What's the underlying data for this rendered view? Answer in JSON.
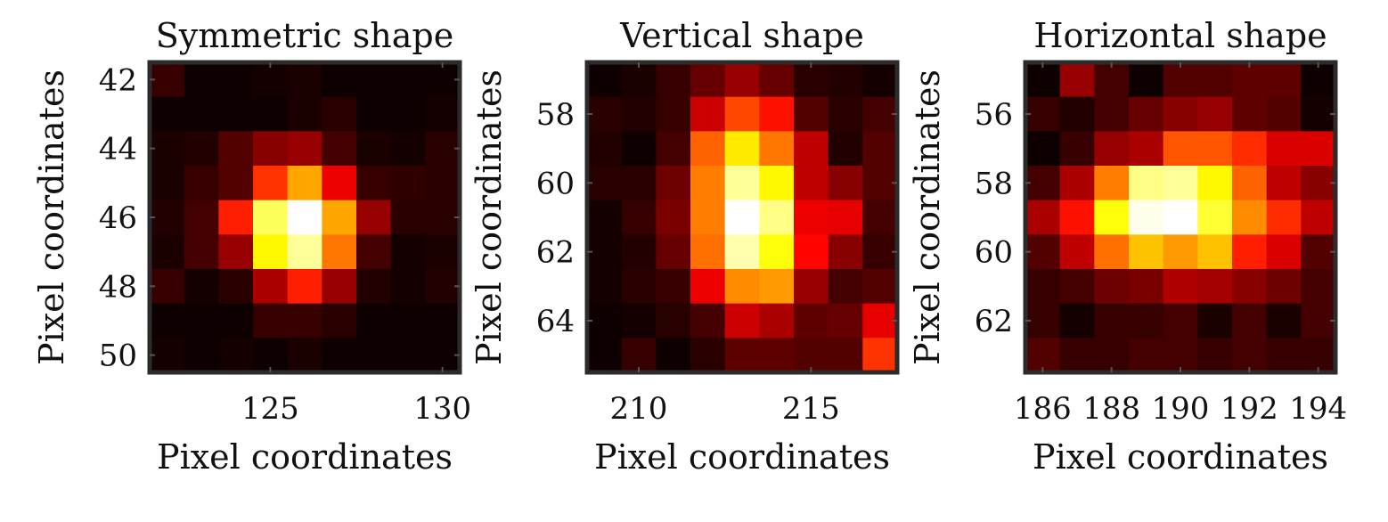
{
  "chart_data": [
    {
      "type": "heatmap",
      "title": "Symmetric shape",
      "xlabel": "Pixel coordinates",
      "ylabel": "Pixel coordinates",
      "colormap": "hot",
      "x_start": 121.5,
      "x_step": 1,
      "x_ticks": [
        125,
        130
      ],
      "y_start": 41.5,
      "y_step": 1,
      "y_ticks": [
        42,
        44,
        46,
        48,
        50
      ],
      "values": [
        [
          0.08,
          0.02,
          0.02,
          0.03,
          0.04,
          0.02,
          0.02,
          0.02,
          0.02
        ],
        [
          0.02,
          0.02,
          0.02,
          0.02,
          0.04,
          0.06,
          0.02,
          0.02,
          0.03
        ],
        [
          0.04,
          0.05,
          0.12,
          0.2,
          0.22,
          0.1,
          0.04,
          0.03,
          0.06
        ],
        [
          0.04,
          0.08,
          0.12,
          0.45,
          0.62,
          0.35,
          0.08,
          0.07,
          0.06
        ],
        [
          0.05,
          0.1,
          0.42,
          0.84,
          1.0,
          0.62,
          0.22,
          0.06,
          0.06
        ],
        [
          0.04,
          0.1,
          0.22,
          0.74,
          0.9,
          0.55,
          0.1,
          0.03,
          0.04
        ],
        [
          0.08,
          0.03,
          0.06,
          0.25,
          0.42,
          0.22,
          0.05,
          0.03,
          0.05
        ],
        [
          0.02,
          0.02,
          0.02,
          0.08,
          0.08,
          0.06,
          0.02,
          0.02,
          0.02
        ],
        [
          0.03,
          0.02,
          0.03,
          0.02,
          0.04,
          0.02,
          0.02,
          0.02,
          0.02
        ]
      ]
    },
    {
      "type": "heatmap",
      "title": "Vertical shape",
      "xlabel": "Pixel coordinates",
      "ylabel": "Pixel coordinates",
      "colormap": "hot",
      "x_start": 208.5,
      "x_step": 1,
      "x_ticks": [
        210,
        215
      ],
      "y_start": 56.5,
      "y_step": 1,
      "y_ticks": [
        58,
        60,
        62,
        64
      ],
      "values": [
        [
          0.02,
          0.04,
          0.08,
          0.15,
          0.22,
          0.15,
          0.06,
          0.05,
          0.03
        ],
        [
          0.06,
          0.05,
          0.08,
          0.3,
          0.48,
          0.4,
          0.12,
          0.06,
          0.1
        ],
        [
          0.05,
          0.02,
          0.1,
          0.52,
          0.72,
          0.55,
          0.28,
          0.05,
          0.12
        ],
        [
          0.06,
          0.06,
          0.16,
          0.56,
          0.9,
          0.74,
          0.28,
          0.2,
          0.12
        ],
        [
          0.03,
          0.08,
          0.18,
          0.56,
          1.0,
          0.88,
          0.35,
          0.34,
          0.1
        ],
        [
          0.03,
          0.05,
          0.15,
          0.54,
          0.92,
          0.76,
          0.38,
          0.2,
          0.08
        ],
        [
          0.03,
          0.06,
          0.08,
          0.35,
          0.58,
          0.6,
          0.22,
          0.1,
          0.12
        ],
        [
          0.02,
          0.03,
          0.06,
          0.1,
          0.3,
          0.25,
          0.14,
          0.15,
          0.34
        ],
        [
          0.02,
          0.08,
          0.02,
          0.06,
          0.14,
          0.14,
          0.12,
          0.12,
          0.45
        ]
      ]
    },
    {
      "type": "heatmap",
      "title": "Horizontal shape",
      "xlabel": "Pixel coordinates",
      "ylabel": "Pixel coordinates",
      "colormap": "hot",
      "x_start": 185.5,
      "x_step": 1,
      "x_ticks": [
        186,
        188,
        190,
        192,
        194
      ],
      "y_start": 54.5,
      "y_step": 1,
      "y_ticks": [
        56,
        58,
        60,
        62
      ],
      "values": [
        [
          0.02,
          0.22,
          0.1,
          0.02,
          0.12,
          0.12,
          0.14,
          0.14,
          0.02
        ],
        [
          0.08,
          0.05,
          0.1,
          0.15,
          0.2,
          0.22,
          0.14,
          0.12,
          0.03
        ],
        [
          0.02,
          0.08,
          0.22,
          0.25,
          0.5,
          0.5,
          0.44,
          0.32,
          0.32
        ],
        [
          0.1,
          0.25,
          0.56,
          0.88,
          0.9,
          0.74,
          0.52,
          0.28,
          0.2
        ],
        [
          0.25,
          0.4,
          0.76,
          0.98,
          1.0,
          0.8,
          0.58,
          0.44,
          0.28
        ],
        [
          0.12,
          0.28,
          0.54,
          0.66,
          0.6,
          0.66,
          0.42,
          0.32,
          0.12
        ],
        [
          0.08,
          0.1,
          0.16,
          0.18,
          0.26,
          0.24,
          0.2,
          0.16,
          0.1
        ],
        [
          0.08,
          0.03,
          0.08,
          0.08,
          0.1,
          0.04,
          0.1,
          0.04,
          0.1
        ],
        [
          0.12,
          0.08,
          0.08,
          0.1,
          0.1,
          0.08,
          0.1,
          0.08,
          0.08
        ]
      ]
    }
  ]
}
